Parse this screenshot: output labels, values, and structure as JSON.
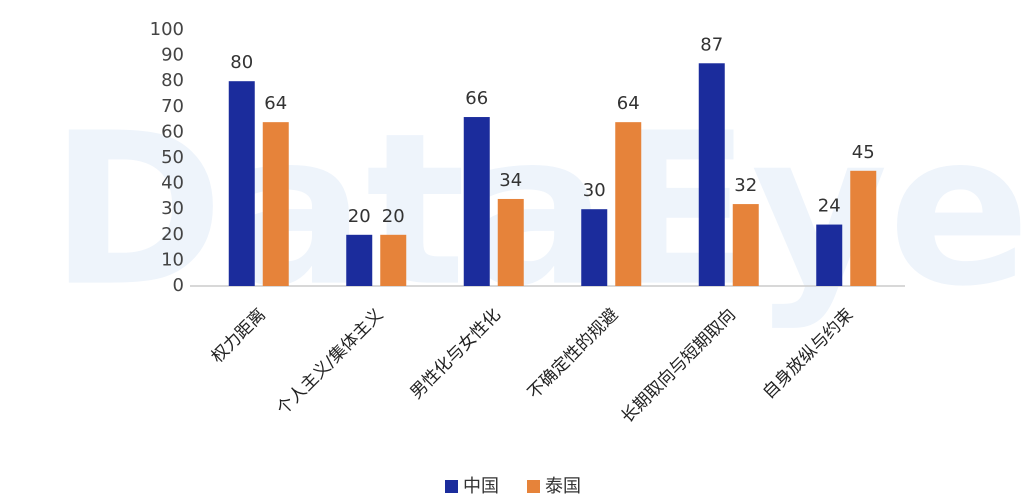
{
  "watermark": "DataEye",
  "chart_data": {
    "type": "bar",
    "categories": [
      "权力距离",
      "个人主义/集体主义",
      "男性化与女性化",
      "不确定性的规避",
      "长期取向与短期取向",
      "自身放纵与约束"
    ],
    "series": [
      {
        "name": "中国",
        "color": "#1b2c9c",
        "values": [
          80,
          20,
          66,
          30,
          87,
          24
        ]
      },
      {
        "name": "泰国",
        "color": "#e6833a",
        "values": [
          64,
          20,
          34,
          64,
          32,
          45
        ]
      }
    ],
    "ylim": [
      0,
      100
    ],
    "yticks": [
      0,
      10,
      20,
      30,
      40,
      50,
      60,
      70,
      80,
      90,
      100
    ],
    "legend": "bottom"
  }
}
